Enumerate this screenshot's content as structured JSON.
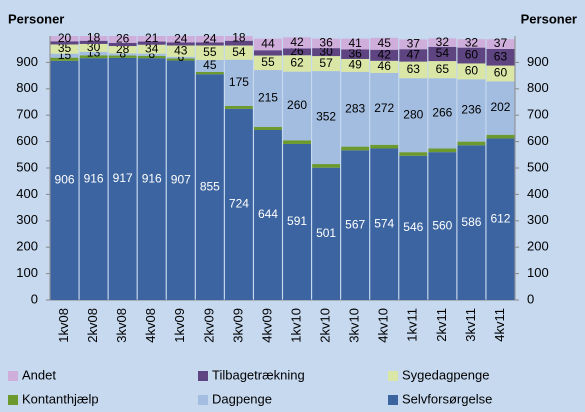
{
  "chart_data": {
    "type": "stacked_bar",
    "y_label": "Personer",
    "y2_label": "Personer",
    "categories": [
      "1kv08",
      "2kv08",
      "3kv08",
      "4kv08",
      "1kv09",
      "2kv09",
      "3kv09",
      "4kv09",
      "1kv10",
      "2kv10",
      "3kv10",
      "4kv10",
      "1kv11",
      "2kv11",
      "3kv11",
      "4kv11"
    ],
    "series": [
      {
        "name": "Selvforsørgelse",
        "color": "#3c64a0",
        "values": [
          906,
          916,
          917,
          916,
          907,
          855,
          724,
          644,
          591,
          501,
          567,
          574,
          546,
          560,
          586,
          612
        ]
      },
      {
        "name": "Kontanthjælp",
        "color": "#6d9a2e",
        "values": [
          12,
          11,
          9,
          9,
          8,
          9,
          11,
          12,
          14,
          14,
          14,
          14,
          14,
          14,
          14,
          14
        ]
      },
      {
        "name": "Dagpenge",
        "color": "#a3bde0",
        "values": [
          15,
          13,
          8,
          8,
          6,
          45,
          175,
          215,
          260,
          352,
          283,
          272,
          280,
          266,
          236,
          202
        ]
      },
      {
        "name": "Sygedagpenge",
        "color": "#d9e6a6",
        "values": [
          35,
          30,
          28,
          34,
          43,
          55,
          54,
          55,
          62,
          57,
          49,
          46,
          63,
          65,
          60,
          60
        ]
      },
      {
        "name": "Tilbagetrækning",
        "color": "#5e4480",
        "values": [
          12,
          12,
          12,
          12,
          12,
          12,
          18,
          20,
          26,
          30,
          36,
          42,
          47,
          54,
          60,
          63
        ]
      },
      {
        "name": "Andet",
        "color": "#cfaedb",
        "values": [
          20,
          18,
          26,
          21,
          24,
          24,
          18,
          44,
          42,
          36,
          41,
          45,
          37,
          32,
          32,
          37
        ]
      }
    ],
    "ylim": [
      0,
      1000
    ],
    "yticks": [
      0,
      100,
      200,
      300,
      400,
      500,
      600,
      700,
      800,
      900
    ],
    "y2lim": [
      0,
      1000
    ],
    "y2ticks": [
      0,
      100,
      200,
      300,
      400,
      500,
      600,
      700,
      800,
      900
    ],
    "legend": "bottom"
  }
}
